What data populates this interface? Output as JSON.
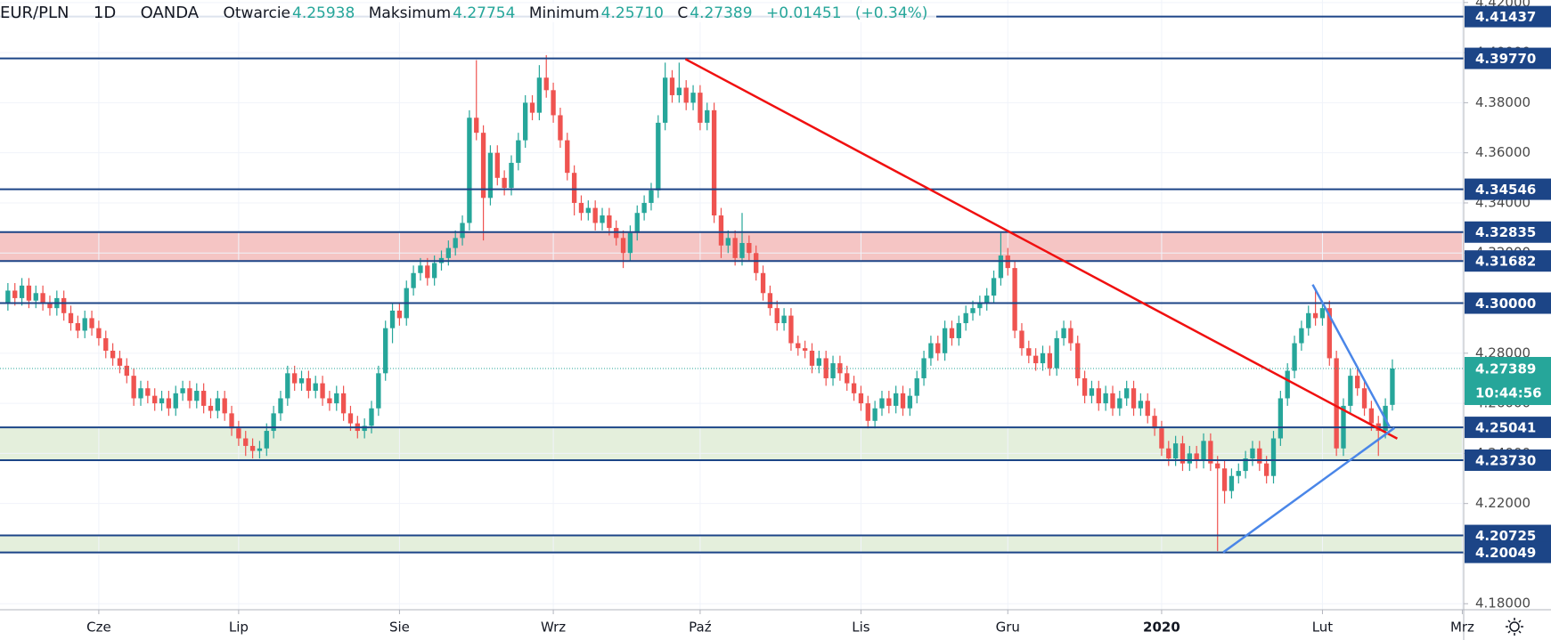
{
  "header": {
    "symbol": "EUR/PLN",
    "interval": "1D",
    "source": "OANDA",
    "open_label": "Otwarcie",
    "open": "4.25938",
    "high_label": "Maksimum",
    "high": "4.27754",
    "low_label": "Minimum",
    "low": "4.25710",
    "close_label": "C",
    "close": "4.27389",
    "change": "+0.01451",
    "change_pct": "(+0.34%)"
  },
  "chart_data": {
    "type": "candlestick",
    "up_color": "#26a69a",
    "down_color": "#ef5350",
    "xlim": [
      -1.13,
      208.2
    ],
    "xticks": [
      {
        "value": 13,
        "label": "Cze"
      },
      {
        "value": 33,
        "label": "Lip"
      },
      {
        "value": 56,
        "label": "Sie"
      },
      {
        "value": 78,
        "label": "Wrz"
      },
      {
        "value": 99,
        "label": "Paź"
      },
      {
        "value": 122,
        "label": "Lis"
      },
      {
        "value": 143,
        "label": "Gru"
      },
      {
        "value": 165,
        "label": "2020"
      },
      {
        "value": 188,
        "label": "Lut"
      },
      {
        "value": 208,
        "label": "Mrz"
      }
    ],
    "ylim": [
      4.1776,
      4.421
    ],
    "yticks": [
      {
        "value": 4.18,
        "label": "4.18000"
      },
      {
        "value": 4.2,
        "label": "4.20000"
      },
      {
        "value": 4.22,
        "label": "4.22000"
      },
      {
        "value": 4.24,
        "label": "4.24000"
      },
      {
        "value": 4.26,
        "label": "4.26000"
      },
      {
        "value": 4.28,
        "label": "4.28000"
      },
      {
        "value": 4.3,
        "label": "4.30000"
      },
      {
        "value": 4.32,
        "label": "4.32000"
      },
      {
        "value": 4.34,
        "label": "4.34000"
      },
      {
        "value": 4.36,
        "label": "4.36000"
      },
      {
        "value": 4.38,
        "label": "4.38000"
      },
      {
        "value": 4.4,
        "label": "4.40000"
      },
      {
        "value": 4.42,
        "label": "4.42000"
      }
    ],
    "grid": true,
    "level_color": "#1c4587",
    "levels": [
      4.41437,
      {
        "value": 4.3977,
        "label": "4.39770"
      },
      4.34546,
      4.32835,
      4.31682,
      {
        "value": 4.3,
        "label": "4.30000"
      },
      4.25041,
      {
        "value": 4.2373,
        "label": "4.23730"
      },
      4.20725,
      4.20049
    ],
    "zones": [
      {
        "from": 4.31682,
        "to": 4.32835,
        "color": "#f5c5c4"
      },
      {
        "from": 4.2373,
        "to": 4.25041,
        "color": "#e4efdc"
      },
      {
        "from": 4.20049,
        "to": 4.20725,
        "color": "#e4efdc"
      }
    ],
    "lines": [
      {
        "color": "#f01010",
        "start": [
          96.9,
          4.3974
        ],
        "end": [
          198.7,
          4.2459
        ]
      },
      {
        "color": "#4a86e8",
        "start": [
          173.8,
          4.2005
        ],
        "end": [
          198.3,
          4.2502
        ]
      },
      {
        "color": "#4a86e8",
        "start": [
          186.6,
          4.3074
        ],
        "end": [
          197.6,
          4.2506
        ]
      }
    ],
    "last_price": 4.27389,
    "countdown": "10:44:56",
    "candles": [
      [
        4.3,
        4.308,
        4.297,
        4.305
      ],
      [
        4.305,
        4.308,
        4.299,
        4.302
      ],
      [
        4.302,
        4.31,
        4.299,
        4.307
      ],
      [
        4.307,
        4.31,
        4.298,
        4.301
      ],
      [
        4.301,
        4.307,
        4.298,
        4.304
      ],
      [
        4.304,
        4.307,
        4.297,
        4.3
      ],
      [
        4.3,
        4.303,
        4.295,
        4.298
      ],
      [
        4.298,
        4.305,
        4.295,
        4.302
      ],
      [
        4.302,
        4.305,
        4.293,
        4.296
      ],
      [
        4.296,
        4.299,
        4.289,
        4.292
      ],
      [
        4.292,
        4.295,
        4.286,
        4.289
      ],
      [
        4.289,
        4.297,
        4.286,
        4.294
      ],
      [
        4.294,
        4.297,
        4.287,
        4.29
      ],
      [
        4.29,
        4.293,
        4.283,
        4.286
      ],
      [
        4.286,
        4.289,
        4.278,
        4.281
      ],
      [
        4.281,
        4.284,
        4.275,
        4.278
      ],
      [
        4.278,
        4.281,
        4.272,
        4.275
      ],
      [
        4.275,
        4.278,
        4.268,
        4.271
      ],
      [
        4.271,
        4.274,
        4.259,
        4.262
      ],
      [
        4.262,
        4.269,
        4.259,
        4.266
      ],
      [
        4.266,
        4.269,
        4.26,
        4.263
      ],
      [
        4.263,
        4.266,
        4.257,
        4.26
      ],
      [
        4.26,
        4.265,
        4.257,
        4.262
      ],
      [
        4.262,
        4.265,
        4.255,
        4.258
      ],
      [
        4.258,
        4.267,
        4.255,
        4.264
      ],
      [
        4.264,
        4.269,
        4.261,
        4.266
      ],
      [
        4.266,
        4.269,
        4.258,
        4.261
      ],
      [
        4.261,
        4.268,
        4.258,
        4.265
      ],
      [
        4.265,
        4.268,
        4.256,
        4.259
      ],
      [
        4.259,
        4.262,
        4.254,
        4.257
      ],
      [
        4.257,
        4.265,
        4.254,
        4.262
      ],
      [
        4.262,
        4.265,
        4.253,
        4.256
      ],
      [
        4.256,
        4.259,
        4.247,
        4.25
      ],
      [
        4.25,
        4.253,
        4.243,
        4.246
      ],
      [
        4.246,
        4.249,
        4.239,
        4.243
      ],
      [
        4.243,
        4.246,
        4.238,
        4.241
      ],
      [
        4.241,
        4.245,
        4.238,
        4.242
      ],
      [
        4.242,
        4.252,
        4.239,
        4.249
      ],
      [
        4.249,
        4.259,
        4.246,
        4.256
      ],
      [
        4.256,
        4.265,
        4.253,
        4.262
      ],
      [
        4.262,
        4.275,
        4.259,
        4.272
      ],
      [
        4.272,
        4.275,
        4.265,
        4.268
      ],
      [
        4.268,
        4.273,
        4.265,
        4.27
      ],
      [
        4.27,
        4.273,
        4.262,
        4.265
      ],
      [
        4.265,
        4.271,
        4.262,
        4.268
      ],
      [
        4.268,
        4.271,
        4.259,
        4.262
      ],
      [
        4.262,
        4.265,
        4.257,
        4.26
      ],
      [
        4.26,
        4.267,
        4.257,
        4.264
      ],
      [
        4.264,
        4.267,
        4.253,
        4.256
      ],
      [
        4.256,
        4.259,
        4.249,
        4.252
      ],
      [
        4.252,
        4.255,
        4.246,
        4.249
      ],
      [
        4.249,
        4.254,
        4.246,
        4.251
      ],
      [
        4.251,
        4.261,
        4.248,
        4.258
      ],
      [
        4.258,
        4.275,
        4.255,
        4.272
      ],
      [
        4.272,
        4.293,
        4.269,
        4.29
      ],
      [
        4.29,
        4.3,
        4.284,
        4.297
      ],
      [
        4.297,
        4.3,
        4.291,
        4.294
      ],
      [
        4.294,
        4.309,
        4.291,
        4.306
      ],
      [
        4.306,
        4.315,
        4.303,
        4.312
      ],
      [
        4.312,
        4.318,
        4.309,
        4.315
      ],
      [
        4.315,
        4.318,
        4.307,
        4.31
      ],
      [
        4.31,
        4.319,
        4.307,
        4.316
      ],
      [
        4.316,
        4.321,
        4.313,
        4.318
      ],
      [
        4.318,
        4.325,
        4.315,
        4.322
      ],
      [
        4.322,
        4.329,
        4.319,
        4.326
      ],
      [
        4.326,
        4.335,
        4.323,
        4.332
      ],
      [
        4.332,
        4.377,
        4.329,
        4.374
      ],
      [
        4.374,
        4.397,
        4.365,
        4.368
      ],
      [
        4.368,
        4.371,
        4.325,
        4.342
      ],
      [
        4.342,
        4.363,
        4.339,
        4.36
      ],
      [
        4.36,
        4.363,
        4.347,
        4.35
      ],
      [
        4.35,
        4.353,
        4.343,
        4.346
      ],
      [
        4.346,
        4.359,
        4.343,
        4.356
      ],
      [
        4.356,
        4.368,
        4.353,
        4.365
      ],
      [
        4.365,
        4.383,
        4.362,
        4.38
      ],
      [
        4.38,
        4.383,
        4.373,
        4.376
      ],
      [
        4.376,
        4.395,
        4.373,
        4.39
      ],
      [
        4.39,
        4.399,
        4.382,
        4.385
      ],
      [
        4.385,
        4.388,
        4.372,
        4.375
      ],
      [
        4.375,
        4.378,
        4.362,
        4.365
      ],
      [
        4.365,
        4.368,
        4.349,
        4.352
      ],
      [
        4.352,
        4.355,
        4.335,
        4.34
      ],
      [
        4.34,
        4.343,
        4.333,
        4.336
      ],
      [
        4.336,
        4.341,
        4.333,
        4.338
      ],
      [
        4.338,
        4.341,
        4.329,
        4.332
      ],
      [
        4.332,
        4.338,
        4.329,
        4.335
      ],
      [
        4.335,
        4.338,
        4.327,
        4.33
      ],
      [
        4.33,
        4.333,
        4.323,
        4.326
      ],
      [
        4.326,
        4.329,
        4.314,
        4.32
      ],
      [
        4.32,
        4.331,
        4.317,
        4.328
      ],
      [
        4.328,
        4.339,
        4.325,
        4.336
      ],
      [
        4.336,
        4.343,
        4.333,
        4.34
      ],
      [
        4.34,
        4.348,
        4.337,
        4.345
      ],
      [
        4.345,
        4.375,
        4.342,
        4.372
      ],
      [
        4.372,
        4.396,
        4.369,
        4.39
      ],
      [
        4.39,
        4.393,
        4.38,
        4.383
      ],
      [
        4.383,
        4.396,
        4.38,
        4.386
      ],
      [
        4.386,
        4.389,
        4.377,
        4.38
      ],
      [
        4.38,
        4.387,
        4.377,
        4.384
      ],
      [
        4.384,
        4.387,
        4.369,
        4.372
      ],
      [
        4.372,
        4.38,
        4.369,
        4.377
      ],
      [
        4.377,
        4.38,
        4.332,
        4.335
      ],
      [
        4.335,
        4.338,
        4.318,
        4.323
      ],
      [
        4.323,
        4.329,
        4.32,
        4.326
      ],
      [
        4.326,
        4.329,
        4.315,
        4.318
      ],
      [
        4.318,
        4.336,
        4.315,
        4.324
      ],
      [
        4.324,
        4.327,
        4.317,
        4.32
      ],
      [
        4.32,
        4.323,
        4.309,
        4.312
      ],
      [
        4.312,
        4.315,
        4.301,
        4.304
      ],
      [
        4.304,
        4.307,
        4.295,
        4.298
      ],
      [
        4.298,
        4.301,
        4.289,
        4.292
      ],
      [
        4.292,
        4.298,
        4.289,
        4.295
      ],
      [
        4.295,
        4.298,
        4.281,
        4.284
      ],
      [
        4.284,
        4.287,
        4.279,
        4.282
      ],
      [
        4.282,
        4.285,
        4.278,
        4.281
      ],
      [
        4.281,
        4.284,
        4.272,
        4.275
      ],
      [
        4.275,
        4.281,
        4.272,
        4.278
      ],
      [
        4.278,
        4.281,
        4.267,
        4.27
      ],
      [
        4.27,
        4.279,
        4.267,
        4.276
      ],
      [
        4.276,
        4.279,
        4.269,
        4.272
      ],
      [
        4.272,
        4.275,
        4.265,
        4.268
      ],
      [
        4.268,
        4.271,
        4.261,
        4.264
      ],
      [
        4.264,
        4.267,
        4.257,
        4.26
      ],
      [
        4.26,
        4.263,
        4.25,
        4.253
      ],
      [
        4.253,
        4.261,
        4.25,
        4.258
      ],
      [
        4.258,
        4.265,
        4.255,
        4.262
      ],
      [
        4.262,
        4.265,
        4.256,
        4.259
      ],
      [
        4.259,
        4.267,
        4.256,
        4.264
      ],
      [
        4.264,
        4.267,
        4.255,
        4.258
      ],
      [
        4.258,
        4.266,
        4.255,
        4.263
      ],
      [
        4.263,
        4.273,
        4.26,
        4.27
      ],
      [
        4.27,
        4.281,
        4.267,
        4.278
      ],
      [
        4.278,
        4.287,
        4.275,
        4.284
      ],
      [
        4.284,
        4.287,
        4.277,
        4.28
      ],
      [
        4.28,
        4.293,
        4.277,
        4.29
      ],
      [
        4.29,
        4.293,
        4.283,
        4.286
      ],
      [
        4.286,
        4.295,
        4.283,
        4.292
      ],
      [
        4.292,
        4.299,
        4.289,
        4.296
      ],
      [
        4.296,
        4.301,
        4.293,
        4.298
      ],
      [
        4.298,
        4.303,
        4.295,
        4.3
      ],
      [
        4.3,
        4.306,
        4.297,
        4.303
      ],
      [
        4.303,
        4.313,
        4.3,
        4.31
      ],
      [
        4.31,
        4.328,
        4.307,
        4.319
      ],
      [
        4.319,
        4.322,
        4.311,
        4.314
      ],
      [
        4.314,
        4.317,
        4.286,
        4.289
      ],
      [
        4.289,
        4.292,
        4.279,
        4.282
      ],
      [
        4.282,
        4.285,
        4.276,
        4.279
      ],
      [
        4.279,
        4.282,
        4.273,
        4.276
      ],
      [
        4.276,
        4.283,
        4.273,
        4.28
      ],
      [
        4.28,
        4.283,
        4.271,
        4.274
      ],
      [
        4.274,
        4.289,
        4.271,
        4.286
      ],
      [
        4.286,
        4.293,
        4.283,
        4.29
      ],
      [
        4.29,
        4.293,
        4.281,
        4.284
      ],
      [
        4.284,
        4.287,
        4.267,
        4.27
      ],
      [
        4.27,
        4.273,
        4.26,
        4.263
      ],
      [
        4.263,
        4.269,
        4.26,
        4.266
      ],
      [
        4.266,
        4.269,
        4.257,
        4.26
      ],
      [
        4.26,
        4.267,
        4.257,
        4.264
      ],
      [
        4.264,
        4.267,
        4.255,
        4.258
      ],
      [
        4.258,
        4.265,
        4.255,
        4.262
      ],
      [
        4.262,
        4.269,
        4.259,
        4.266
      ],
      [
        4.266,
        4.269,
        4.255,
        4.258
      ],
      [
        4.258,
        4.264,
        4.255,
        4.261
      ],
      [
        4.261,
        4.264,
        4.252,
        4.255
      ],
      [
        4.255,
        4.258,
        4.247,
        4.25
      ],
      [
        4.25,
        4.253,
        4.239,
        4.242
      ],
      [
        4.242,
        4.245,
        4.235,
        4.238
      ],
      [
        4.238,
        4.247,
        4.235,
        4.244
      ],
      [
        4.244,
        4.247,
        4.233,
        4.236
      ],
      [
        4.236,
        4.243,
        4.233,
        4.24
      ],
      [
        4.24,
        4.243,
        4.234,
        4.237
      ],
      [
        4.237,
        4.248,
        4.234,
        4.245
      ],
      [
        4.245,
        4.248,
        4.233,
        4.236
      ],
      [
        4.236,
        4.239,
        4.201,
        4.234
      ],
      [
        4.234,
        4.237,
        4.22,
        4.225
      ],
      [
        4.225,
        4.234,
        4.222,
        4.231
      ],
      [
        4.231,
        4.236,
        4.228,
        4.233
      ],
      [
        4.233,
        4.241,
        4.23,
        4.238
      ],
      [
        4.238,
        4.245,
        4.235,
        4.242
      ],
      [
        4.242,
        4.245,
        4.233,
        4.236
      ],
      [
        4.236,
        4.239,
        4.228,
        4.231
      ],
      [
        4.231,
        4.249,
        4.228,
        4.246
      ],
      [
        4.246,
        4.265,
        4.243,
        4.262
      ],
      [
        4.262,
        4.276,
        4.259,
        4.273
      ],
      [
        4.273,
        4.287,
        4.27,
        4.284
      ],
      [
        4.284,
        4.293,
        4.281,
        4.29
      ],
      [
        4.29,
        4.299,
        4.287,
        4.296
      ],
      [
        4.296,
        4.306,
        4.291,
        4.294
      ],
      [
        4.294,
        4.301,
        4.291,
        4.298
      ],
      [
        4.298,
        4.301,
        4.275,
        4.278
      ],
      [
        4.278,
        4.281,
        4.239,
        4.242
      ],
      [
        4.242,
        4.262,
        4.239,
        4.259
      ],
      [
        4.259,
        4.274,
        4.256,
        4.271
      ],
      [
        4.271,
        4.274,
        4.263,
        4.266
      ],
      [
        4.266,
        4.269,
        4.255,
        4.258
      ],
      [
        4.258,
        4.261,
        4.249,
        4.252
      ],
      [
        4.252,
        4.255,
        4.239,
        4.249
      ],
      [
        4.249,
        4.262,
        4.246,
        4.259
      ],
      [
        4.25938,
        4.27754,
        4.2571,
        4.27389
      ]
    ]
  }
}
